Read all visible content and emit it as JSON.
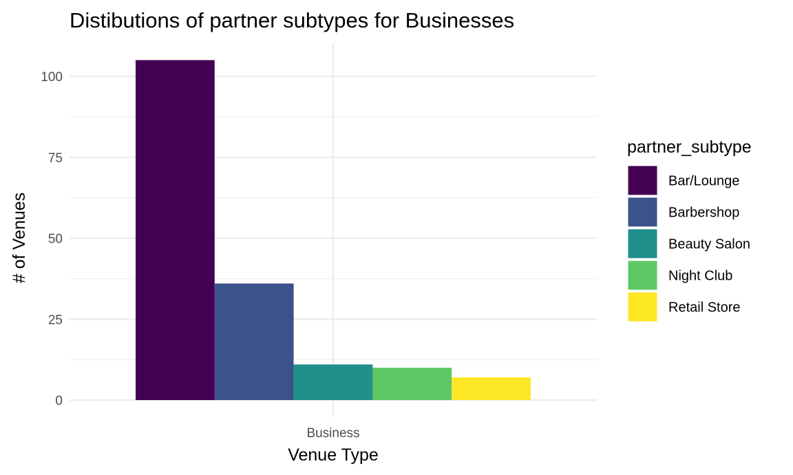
{
  "chart_data": {
    "type": "bar",
    "title": "Distibutions of partner subtypes for Businesses",
    "xlabel": "Venue Type",
    "ylabel": "# of Venues",
    "categories": [
      "Business"
    ],
    "series": [
      {
        "name": "Bar/Lounge",
        "values": [
          105
        ],
        "color": "#440154"
      },
      {
        "name": "Barbershop",
        "values": [
          36
        ],
        "color": "#3B528B"
      },
      {
        "name": "Beauty Salon",
        "values": [
          11
        ],
        "color": "#21908C"
      },
      {
        "name": "Night Club",
        "values": [
          10
        ],
        "color": "#5DC863"
      },
      {
        "name": "Retail Store",
        "values": [
          7
        ],
        "color": "#FDE725"
      }
    ],
    "ylim": [
      0,
      110
    ],
    "yticks": [
      0,
      25,
      50,
      75,
      100
    ],
    "grid": true,
    "legend": {
      "title": "partner_subtype",
      "position": "right"
    }
  }
}
